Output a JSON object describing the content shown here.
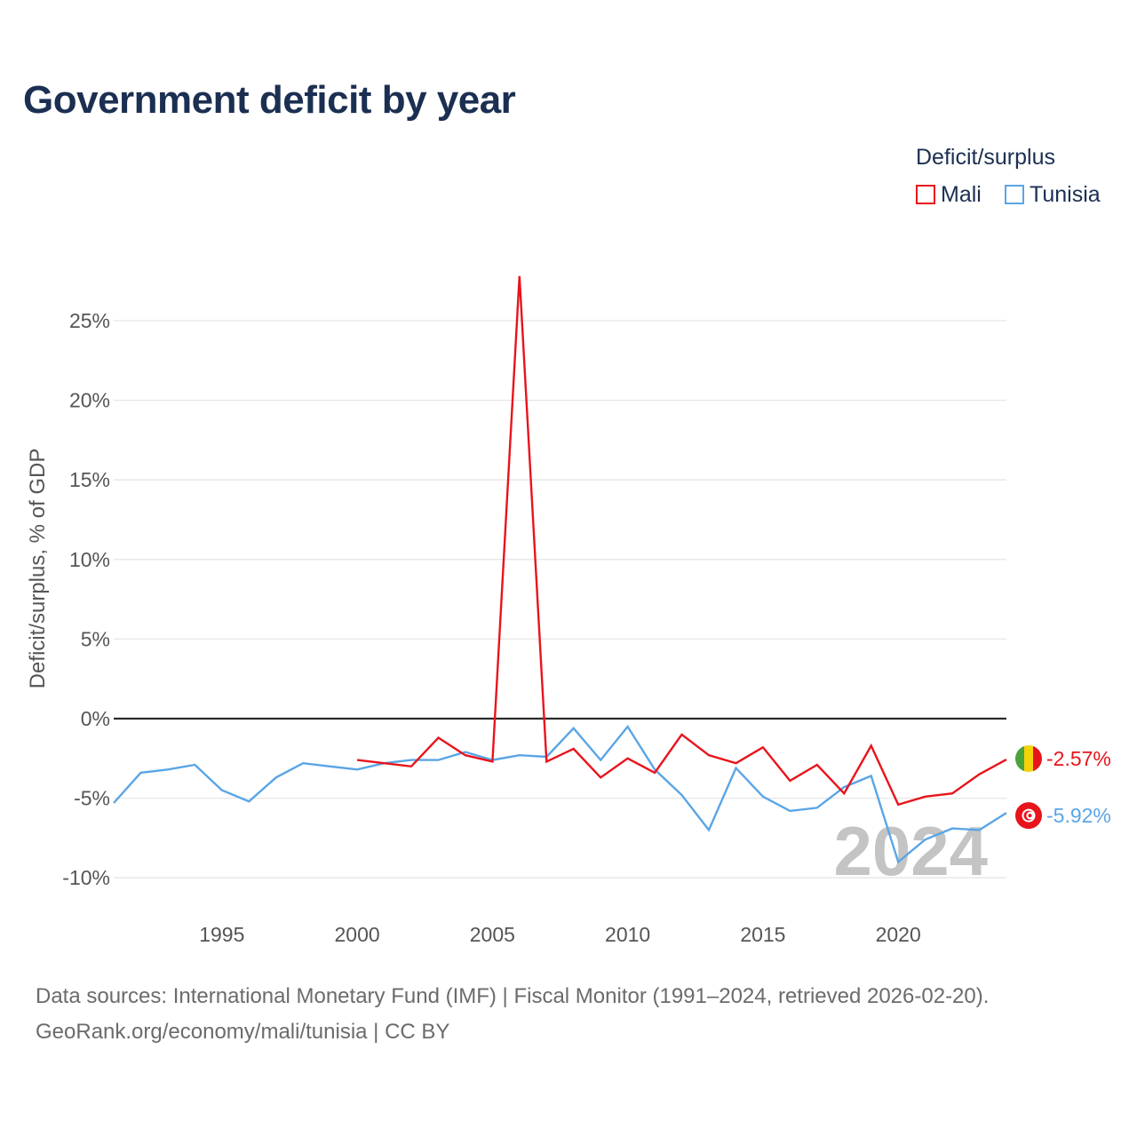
{
  "title": "Government deficit by year",
  "legend": {
    "title": "Deficit/surplus",
    "items": [
      {
        "label": "Mali",
        "color": "#e8141c"
      },
      {
        "label": "Tunisia",
        "color": "#5aa5e6"
      }
    ]
  },
  "source": {
    "line1": "Data sources: International Monetary Fund (IMF) | Fiscal Monitor (1991–2024, retrieved 2026-02-20).",
    "line2": "GeoRank.org/economy/mali/tunisia | CC BY"
  },
  "chart_data": {
    "type": "line",
    "title": "Government deficit by year",
    "xlabel": "",
    "ylabel": "Deficit/surplus, % of GDP",
    "xlim": [
      1991,
      2024
    ],
    "ylim": [
      -11.5,
      29
    ],
    "y_ticks": [
      -10,
      -5,
      0,
      5,
      10,
      15,
      20,
      25
    ],
    "y_tick_labels": [
      "-10%",
      "-5%",
      "0%",
      "5%",
      "10%",
      "15%",
      "20%",
      "25%"
    ],
    "x_ticks": [
      1995,
      2000,
      2005,
      2010,
      2015,
      2020
    ],
    "x_tick_labels": [
      "1995",
      "2000",
      "2005",
      "2010",
      "2015",
      "2020"
    ],
    "grid": true,
    "legend_position": "top-right",
    "year_watermark": "2024",
    "series": [
      {
        "name": "Mali",
        "color": "#e8141c",
        "end_label": "-2.57%",
        "x": [
          2000,
          2001,
          2002,
          2003,
          2004,
          2005,
          2006,
          2007,
          2008,
          2009,
          2010,
          2011,
          2012,
          2013,
          2014,
          2015,
          2016,
          2017,
          2018,
          2019,
          2020,
          2021,
          2022,
          2023,
          2024
        ],
        "values": [
          -2.6,
          -2.8,
          -3.0,
          -1.2,
          -2.3,
          -2.7,
          27.8,
          -2.7,
          -1.9,
          -3.7,
          -2.5,
          -3.4,
          -1.0,
          -2.3,
          -2.8,
          -1.8,
          -3.9,
          -2.9,
          -4.7,
          -1.7,
          -5.4,
          -4.9,
          -4.7,
          -3.5,
          -2.57
        ]
      },
      {
        "name": "Tunisia",
        "color": "#5aa5e6",
        "end_label": "-5.92%",
        "x": [
          1991,
          1992,
          1993,
          1994,
          1995,
          1996,
          1997,
          1998,
          1999,
          2000,
          2001,
          2002,
          2003,
          2004,
          2005,
          2006,
          2007,
          2008,
          2009,
          2010,
          2011,
          2012,
          2013,
          2014,
          2015,
          2016,
          2017,
          2018,
          2019,
          2020,
          2021,
          2022,
          2023,
          2024
        ],
        "values": [
          -5.3,
          -3.4,
          -3.2,
          -2.9,
          -4.5,
          -5.2,
          -3.7,
          -2.8,
          -3.0,
          -3.2,
          -2.8,
          -2.6,
          -2.6,
          -2.1,
          -2.6,
          -2.3,
          -2.4,
          -0.6,
          -2.6,
          -0.5,
          -3.2,
          -4.8,
          -7.0,
          -3.1,
          -4.9,
          -5.8,
          -5.6,
          -4.3,
          -3.6,
          -9.0,
          -7.6,
          -6.9,
          -7.0,
          -5.92
        ]
      }
    ]
  }
}
